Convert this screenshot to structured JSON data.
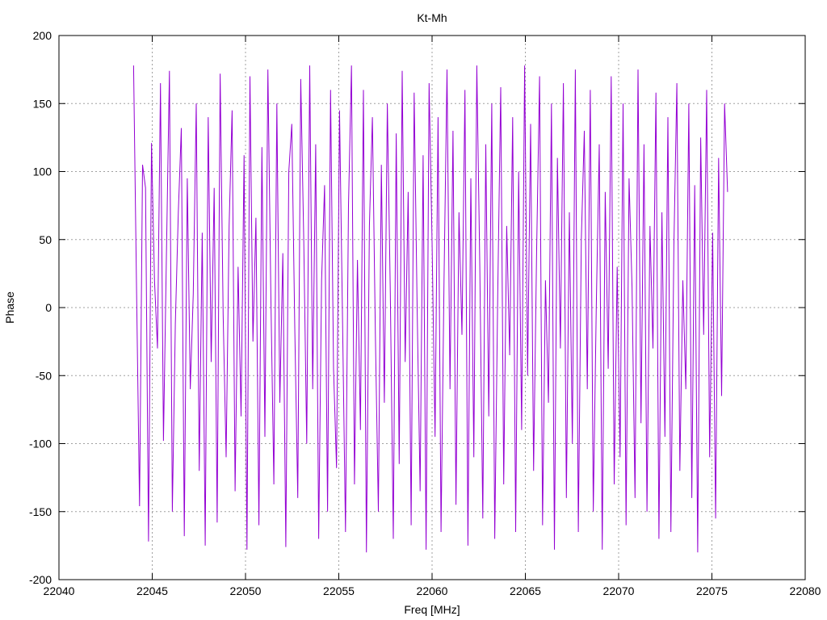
{
  "chart_data": {
    "type": "line",
    "title": "Kt-Mh",
    "xlabel": "Freq [MHz]",
    "ylabel": "Phase",
    "xlim": [
      22040,
      22080
    ],
    "ylim": [
      -200,
      200
    ],
    "xticks": [
      "22040",
      "22045",
      "22050",
      "22055",
      "22060",
      "22065",
      "22070",
      "22075",
      "22080"
    ],
    "yticks": [
      "200",
      "150",
      "100",
      "50",
      "0",
      "-50",
      "-100",
      "-150",
      "-200"
    ],
    "grid": true,
    "series": [
      {
        "name": "Kt-Mh",
        "color": "#9400d3",
        "x_start": 22044.0,
        "x_step": 0.16,
        "values": [
          178,
          12,
          -146,
          105,
          88,
          -172,
          121,
          20,
          -30,
          165,
          -98,
          40,
          174,
          -150,
          -12,
          70,
          132,
          -168,
          95,
          -60,
          10,
          150,
          -120,
          55,
          -175,
          140,
          -40,
          88,
          -158,
          172,
          -5,
          -110,
          60,
          145,
          -135,
          30,
          -80,
          112,
          -178,
          170,
          -25,
          66,
          -160,
          118,
          -95,
          175,
          8,
          -130,
          150,
          -70,
          40,
          -176,
          100,
          135,
          -15,
          -140,
          168,
          50,
          -100,
          178,
          -60,
          120,
          -170,
          20,
          90,
          -150,
          160,
          -45,
          -118,
          145,
          -8,
          -165,
          75,
          178,
          -130,
          35,
          -90,
          160,
          -180,
          60,
          140,
          -20,
          -150,
          105,
          -70,
          150,
          10,
          -170,
          128,
          -115,
          174,
          -40,
          85,
          -160,
          158,
          0,
          -135,
          112,
          -178,
          165,
          48,
          -95,
          140,
          -165,
          20,
          175,
          -60,
          130,
          -145,
          70,
          -20,
          160,
          -175,
          95,
          -110,
          178,
          30,
          -155,
          120,
          -80,
          150,
          -170,
          10,
          162,
          -130,
          60,
          -35,
          140,
          -165,
          100,
          -90,
          178,
          -50,
          135,
          -120,
          40,
          170,
          -160,
          20,
          -70,
          150,
          -178,
          110,
          -30,
          165,
          -140,
          70,
          -100,
          175,
          -165,
          50,
          130,
          -60,
          160,
          -150,
          0,
          120,
          -178,
          85,
          -45,
          170,
          -130,
          30,
          -110,
          150,
          -160,
          95,
          15,
          -140,
          175,
          -85,
          120,
          -150,
          60,
          -30,
          158,
          -170,
          70,
          -95,
          140,
          -165,
          45,
          165,
          -120,
          20,
          -60,
          150,
          -140,
          90,
          -180,
          125,
          -20,
          160,
          -110,
          55,
          -155,
          110,
          -65,
          150,
          85
        ]
      }
    ]
  }
}
